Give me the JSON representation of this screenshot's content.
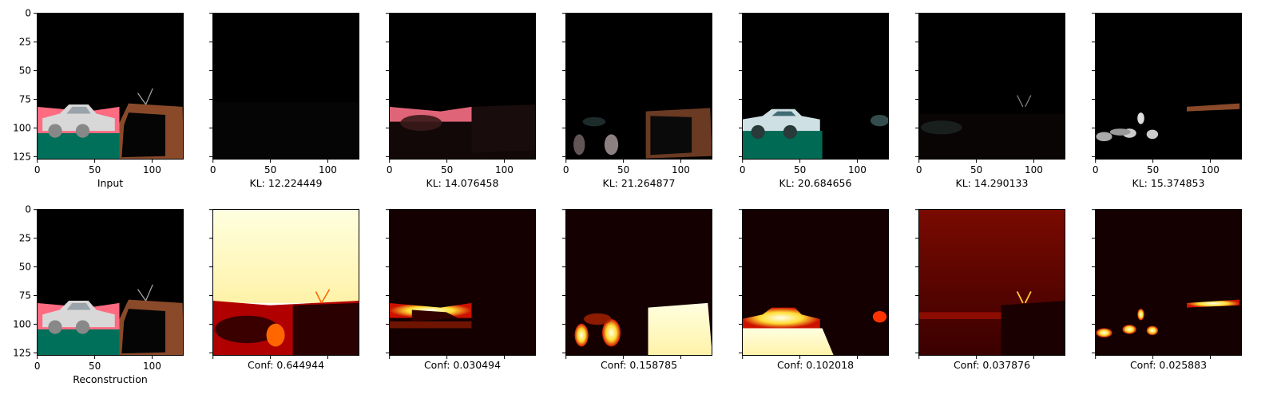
{
  "figure": {
    "top_row_captions": [
      "Input",
      "KL: 12.224449",
      "KL: 14.076458",
      "KL: 21.264877",
      "KL: 20.684656",
      "KL: 14.290133",
      "KL: 15.374853"
    ],
    "bottom_row_captions": [
      "Reconstruction",
      "Conf: 0.644944",
      "Conf: 0.030494",
      "Conf: 0.158785",
      "Conf: 0.102018",
      "Conf: 0.037876",
      "Conf: 0.025883"
    ]
  },
  "chart_data": {
    "type": "heatmap",
    "layout": "grid of image panels, 2 rows by 7 columns",
    "image_size": [
      128,
      128
    ],
    "x_ticks": [
      0,
      50,
      100
    ],
    "y_ticks": [
      0,
      25,
      50,
      75,
      100,
      125
    ],
    "x_tick_labels": [
      "0",
      "50",
      "100"
    ],
    "y_tick_labels": [
      "0",
      "25",
      "50",
      "75",
      "100",
      "125"
    ],
    "kl_values": [
      12.224449,
      14.076458,
      21.264877,
      20.684656,
      14.290133,
      15.374853
    ],
    "conf_values": [
      0.644944,
      0.030494,
      0.158785,
      0.102018,
      0.037876,
      0.025883
    ],
    "colors": {
      "background_black": "#000000",
      "pink": "#ff6b81",
      "teal_ground": "#00705a",
      "car_white": "#d8d8d8",
      "tv_brown": "#8a4a2a",
      "heat_low": "#220000",
      "heat_mid": "#cc1100",
      "heat_high": "#ffff66",
      "heat_max": "#ffffee"
    }
  }
}
